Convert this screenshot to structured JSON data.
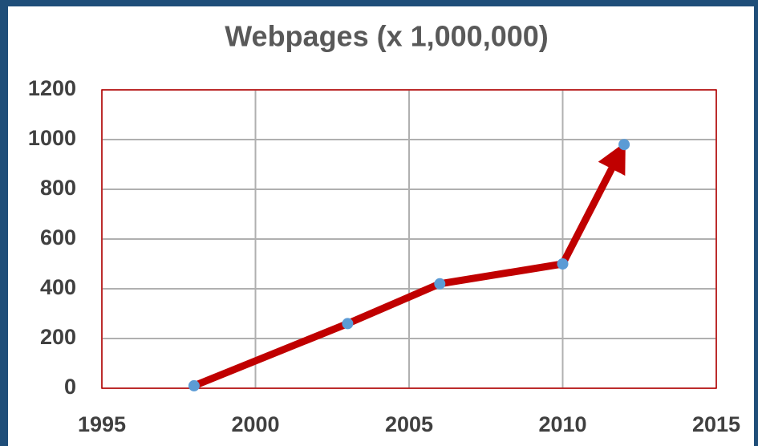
{
  "chart_data": {
    "type": "line",
    "title": "Webpages (x 1,000,000)",
    "x": [
      1998,
      2003,
      2006,
      2010,
      2012
    ],
    "series": [
      {
        "color": "#c00000",
        "marker_color": "#5b9bd5",
        "values": [
          10,
          260,
          420,
          500,
          980
        ]
      }
    ],
    "xlim": [
      1995,
      2015
    ],
    "xticks": [
      1995,
      2000,
      2005,
      2010,
      2015
    ],
    "ylim": [
      0,
      1200
    ],
    "yticks": [
      0,
      200,
      400,
      600,
      800,
      1000,
      1200
    ],
    "grid": true,
    "arrow_end": true
  }
}
